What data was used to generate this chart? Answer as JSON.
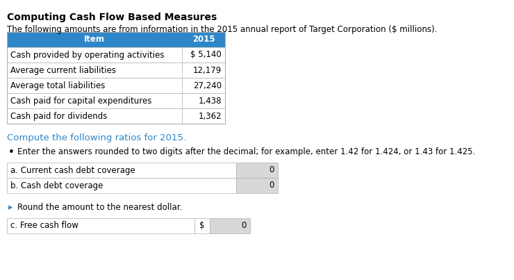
{
  "title": "Computing Cash Flow Based Measures",
  "subtitle": "The following amounts are from information in the 2015 annual report of Target Corporation ($ millions).",
  "table1_header": [
    "Item",
    "2015"
  ],
  "table1_rows": [
    [
      "Cash provided by operating activities",
      "$ 5,140"
    ],
    [
      "Average current liabilities",
      "12,179"
    ],
    [
      "Average total liabilities",
      "27,240"
    ],
    [
      "Cash paid for capital expenditures",
      "1,438"
    ],
    [
      "Cash paid for dividends",
      "1,362"
    ]
  ],
  "header_bg": "#2e86c8",
  "header_fg": "#ffffff",
  "table_border": "#b0b0b0",
  "compute_text": "Compute the following ratios for 2015.",
  "bullet1_text": "Enter the answers rounded to two digits after the decimal; for example, enter 1.42 for 1.424, or 1.43 for 1.425.",
  "answer_rows": [
    [
      "a. Current cash debt coverage",
      "0"
    ],
    [
      "b. Cash debt coverage",
      "0"
    ]
  ],
  "bullet2_text": "Round the amount to the nearest dollar.",
  "free_cash_flow_label": "c. Free cash flow",
  "free_cash_flow_dollar": "$",
  "free_cash_flow_value": "0",
  "input_bg": "#d8d8d8",
  "white": "#ffffff",
  "text_color": "#000000",
  "compute_color": "#2e86c8",
  "bullet_color": "#2e86c8"
}
